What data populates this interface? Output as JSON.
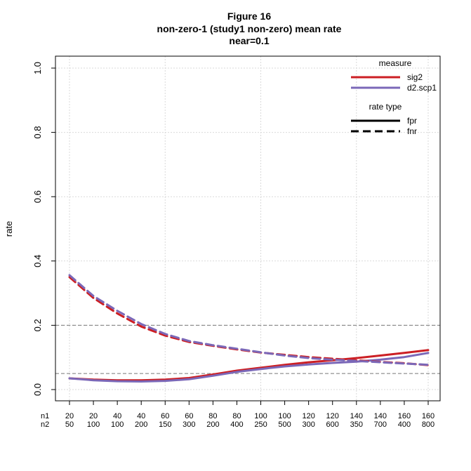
{
  "chart_data": {
    "type": "line",
    "title": "Figure 16",
    "subtitle": "non-zero-1 (study1 non-zero) mean rate",
    "subtitle2": "near=0.1",
    "xlabel": "",
    "ylabel": "rate",
    "ylim": [
      0,
      1
    ],
    "yticks": [
      "0.0",
      "0.2",
      "0.4",
      "0.6",
      "0.8",
      "1.0"
    ],
    "xtick_row_labels": [
      "n1",
      "n2"
    ],
    "x": [
      {
        "n1": "20",
        "n2": "50"
      },
      {
        "n1": "20",
        "n2": "100"
      },
      {
        "n1": "40",
        "n2": "100"
      },
      {
        "n1": "40",
        "n2": "200"
      },
      {
        "n1": "60",
        "n2": "150"
      },
      {
        "n1": "60",
        "n2": "300"
      },
      {
        "n1": "80",
        "n2": "200"
      },
      {
        "n1": "80",
        "n2": "400"
      },
      {
        "n1": "100",
        "n2": "250"
      },
      {
        "n1": "100",
        "n2": "500"
      },
      {
        "n1": "120",
        "n2": "300"
      },
      {
        "n1": "120",
        "n2": "600"
      },
      {
        "n1": "140",
        "n2": "350"
      },
      {
        "n1": "140",
        "n2": "700"
      },
      {
        "n1": "160",
        "n2": "400"
      },
      {
        "n1": "160",
        "n2": "800"
      }
    ],
    "reference_lines": [
      0.2,
      0.05
    ],
    "grid": true,
    "legend_position": "top-right",
    "legend_measure_title": "measure",
    "legend_rate_title": "rate type",
    "series": [
      {
        "name": "sig2",
        "measure": "sig2",
        "rate_type": "fpr",
        "color": "#cc1f24",
        "values": [
          0.035,
          0.031,
          0.029,
          0.029,
          0.031,
          0.036,
          0.047,
          0.059,
          0.068,
          0.077,
          0.085,
          0.091,
          0.098,
          0.106,
          0.114,
          0.123
        ]
      },
      {
        "name": "d2.scp1",
        "measure": "d2.scp1",
        "rate_type": "fpr",
        "color": "#7b68b8",
        "values": [
          0.035,
          0.029,
          0.026,
          0.025,
          0.027,
          0.032,
          0.043,
          0.055,
          0.064,
          0.072,
          0.078,
          0.083,
          0.087,
          0.093,
          0.101,
          0.114
        ]
      },
      {
        "name": "sig2",
        "measure": "sig2",
        "rate_type": "fnr",
        "color": "#cc1f24",
        "values": [
          0.35,
          0.285,
          0.237,
          0.196,
          0.168,
          0.148,
          0.136,
          0.125,
          0.115,
          0.108,
          0.101,
          0.096,
          0.091,
          0.086,
          0.082,
          0.076
        ]
      },
      {
        "name": "d2.scp1",
        "measure": "d2.scp1",
        "rate_type": "fnr",
        "color": "#7b68b8",
        "values": [
          0.356,
          0.291,
          0.245,
          0.204,
          0.173,
          0.151,
          0.138,
          0.127,
          0.116,
          0.106,
          0.098,
          0.093,
          0.089,
          0.085,
          0.081,
          0.077
        ]
      }
    ],
    "legend_measures": [
      {
        "label": "sig2",
        "color": "#cc1f24"
      },
      {
        "label": "d2.scp1",
        "color": "#7b68b8"
      }
    ],
    "legend_rate_types": [
      {
        "label": "fpr",
        "dash": "solid"
      },
      {
        "label": "fnr",
        "dash": "dashed"
      }
    ]
  }
}
